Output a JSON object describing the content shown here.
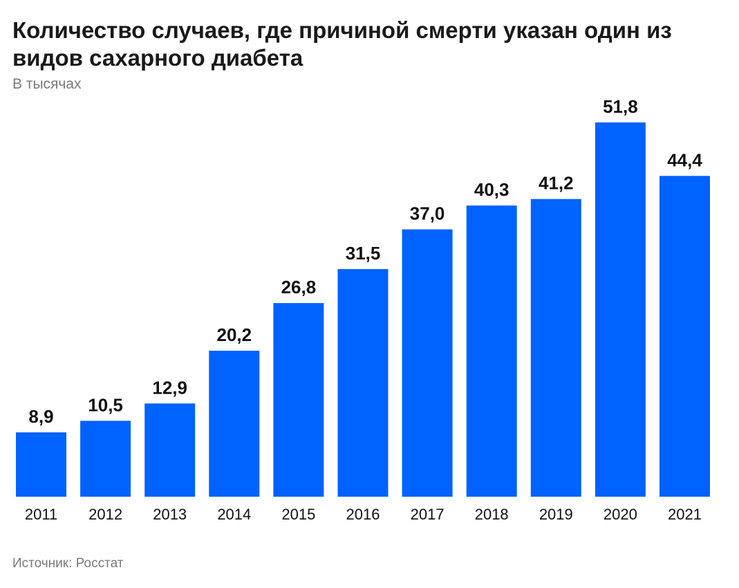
{
  "chart_data": {
    "type": "bar",
    "title": "Количество случаев, где причиной смерти указан один из видов сахарного диабета",
    "subtitle": "В тысячах",
    "source": "Источник: Росстат",
    "categories": [
      "2011",
      "2012",
      "2013",
      "2014",
      "2015",
      "2016",
      "2017",
      "2018",
      "2019",
      "2020",
      "2021"
    ],
    "values": [
      8.9,
      10.5,
      12.9,
      20.2,
      26.8,
      31.5,
      37.0,
      40.3,
      41.2,
      51.8,
      44.4
    ],
    "value_labels": [
      "8,9",
      "10,5",
      "12,9",
      "20,2",
      "26,8",
      "31,5",
      "37,0",
      "40,3",
      "41,2",
      "51,8",
      "44,4"
    ],
    "xlabel": "",
    "ylabel": "",
    "ylim": [
      0,
      51.8
    ],
    "grid": false,
    "bar_color": "#0062FF"
  }
}
